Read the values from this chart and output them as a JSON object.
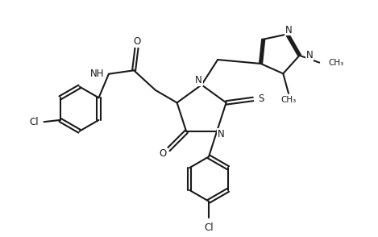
{
  "bg_color": "#ffffff",
  "line_color": "#1a1a1a",
  "line_width": 1.5,
  "font_size": 8.5,
  "figsize": [
    4.69,
    2.94
  ],
  "dpi": 100,
  "xlim": [
    0,
    10
  ],
  "ylim": [
    0,
    6.5
  ]
}
